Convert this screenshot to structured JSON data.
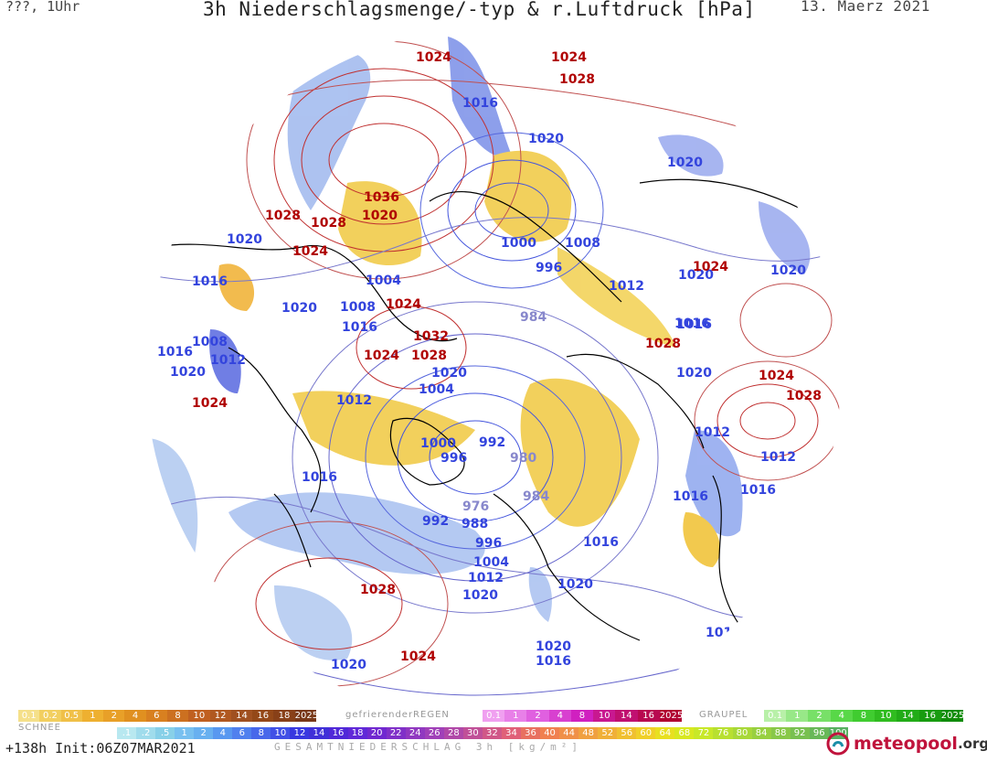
{
  "header": {
    "left": "???, 1Uhr",
    "title": "3h Niederschlagsmenge/-typ & r.Luftdruck [hPa]",
    "date": "13. Maerz 2021"
  },
  "map": {
    "pressure_labels": [
      {
        "text": "1024",
        "color": "#b00000"
      },
      {
        "text": "1024",
        "color": "#b00000"
      },
      {
        "text": "1028",
        "color": "#b00000"
      },
      {
        "text": "1016",
        "color": "#3344dd"
      },
      {
        "text": "1020",
        "color": "#3344dd"
      },
      {
        "text": "1020",
        "color": "#3344dd"
      },
      {
        "text": "1036",
        "color": "#b00000"
      },
      {
        "text": "1020",
        "color": "#b00000"
      },
      {
        "text": "1028",
        "color": "#b00000"
      },
      {
        "text": "1028",
        "color": "#b00000"
      },
      {
        "text": "1020",
        "color": "#3344dd"
      },
      {
        "text": "1024",
        "color": "#b00000"
      },
      {
        "text": "1000",
        "color": "#3344dd"
      },
      {
        "text": "1008",
        "color": "#3344dd"
      },
      {
        "text": "996",
        "color": "#3344dd"
      },
      {
        "text": "1004",
        "color": "#3344dd"
      },
      {
        "text": "1016",
        "color": "#3344dd"
      },
      {
        "text": "1024",
        "color": "#b00000"
      },
      {
        "text": "1020",
        "color": "#3344dd"
      },
      {
        "text": "1020",
        "color": "#3344dd"
      },
      {
        "text": "1012",
        "color": "#3344dd"
      },
      {
        "text": "1020",
        "color": "#3344dd"
      },
      {
        "text": "1008",
        "color": "#3344dd"
      },
      {
        "text": "1024",
        "color": "#b00000"
      },
      {
        "text": "1016",
        "color": "#3344dd"
      },
      {
        "text": "984",
        "color": "#8888cc"
      },
      {
        "text": "1016",
        "color": "#3344dd"
      },
      {
        "text": "1016",
        "color": "#3344dd"
      },
      {
        "text": "1008",
        "color": "#3344dd"
      },
      {
        "text": "1032",
        "color": "#b00000"
      },
      {
        "text": "1028",
        "color": "#b00000"
      },
      {
        "text": "1024",
        "color": "#b00000"
      },
      {
        "text": "1028",
        "color": "#b00000"
      },
      {
        "text": "1016",
        "color": "#3344dd"
      },
      {
        "text": "1012",
        "color": "#3344dd"
      },
      {
        "text": "1020",
        "color": "#3344dd"
      },
      {
        "text": "1020",
        "color": "#3344dd"
      },
      {
        "text": "1020",
        "color": "#3344dd"
      },
      {
        "text": "1024",
        "color": "#b00000"
      },
      {
        "text": "1028",
        "color": "#b00000"
      },
      {
        "text": "1004",
        "color": "#3344dd"
      },
      {
        "text": "1024",
        "color": "#b00000"
      },
      {
        "text": "1012",
        "color": "#3344dd"
      },
      {
        "text": "1012",
        "color": "#3344dd"
      },
      {
        "text": "1012",
        "color": "#3344dd"
      },
      {
        "text": "1000",
        "color": "#3344dd"
      },
      {
        "text": "992",
        "color": "#3344dd"
      },
      {
        "text": "996",
        "color": "#3344dd"
      },
      {
        "text": "980",
        "color": "#8888cc"
      },
      {
        "text": "1016",
        "color": "#3344dd"
      },
      {
        "text": "1016",
        "color": "#3344dd"
      },
      {
        "text": "1016",
        "color": "#3344dd"
      },
      {
        "text": "984",
        "color": "#8888cc"
      },
      {
        "text": "976",
        "color": "#8888cc"
      },
      {
        "text": "992",
        "color": "#3344dd"
      },
      {
        "text": "988",
        "color": "#3344dd"
      },
      {
        "text": "996",
        "color": "#3344dd"
      },
      {
        "text": "1004",
        "color": "#3344dd"
      },
      {
        "text": "1016",
        "color": "#3344dd"
      },
      {
        "text": "1012",
        "color": "#3344dd"
      },
      {
        "text": "1020",
        "color": "#3344dd"
      },
      {
        "text": "1020",
        "color": "#3344dd"
      },
      {
        "text": "1028",
        "color": "#b00000"
      },
      {
        "text": "1016",
        "color": "#3344dd"
      },
      {
        "text": "1024",
        "color": "#b00000"
      },
      {
        "text": "1020",
        "color": "#3344dd"
      },
      {
        "text": "1020",
        "color": "#3344dd"
      },
      {
        "text": "1016",
        "color": "#3344dd"
      }
    ]
  },
  "legend": {
    "snow": {
      "title": "SCHNEE",
      "cells": [
        {
          "text": "0.1",
          "color": "#f5e08a"
        },
        {
          "text": "0.2",
          "color": "#f2cf60"
        },
        {
          "text": "0.5",
          "color": "#f0c048"
        },
        {
          "text": "1",
          "color": "#eeb030"
        },
        {
          "text": "2",
          "color": "#e8a028"
        },
        {
          "text": "4",
          "color": "#e09020"
        },
        {
          "text": "6",
          "color": "#d88020"
        },
        {
          "text": "8",
          "color": "#cc7020"
        },
        {
          "text": "10",
          "color": "#c06020"
        },
        {
          "text": "12",
          "color": "#b05820"
        },
        {
          "text": "14",
          "color": "#a05020"
        },
        {
          "text": "16",
          "color": "#944818"
        },
        {
          "text": "18",
          "color": "#884018"
        },
        {
          "text": "2025+",
          "color": "#783818"
        }
      ]
    },
    "freezing_rain": {
      "title": "gefrierenderREGEN",
      "cells": [
        {
          "text": "0.1",
          "color": "#f0a0f0"
        },
        {
          "text": "1",
          "color": "#e880e8"
        },
        {
          "text": "2",
          "color": "#e060e0"
        },
        {
          "text": "4",
          "color": "#d840d0"
        },
        {
          "text": "8",
          "color": "#d020c0"
        },
        {
          "text": "10",
          "color": "#c81890"
        },
        {
          "text": "14",
          "color": "#c01070"
        },
        {
          "text": "16",
          "color": "#b80850"
        },
        {
          "text": "2025+",
          "color": "#b00030"
        }
      ]
    },
    "graupel": {
      "title": "GRAUPEL",
      "cells": [
        {
          "text": "0.1",
          "color": "#b8f0a8"
        },
        {
          "text": "1",
          "color": "#98e888"
        },
        {
          "text": "2",
          "color": "#78e068"
        },
        {
          "text": "4",
          "color": "#58d848"
        },
        {
          "text": "8",
          "color": "#40cc30"
        },
        {
          "text": "10",
          "color": "#30bc20"
        },
        {
          "text": "14",
          "color": "#22ac18"
        },
        {
          "text": "16",
          "color": "#189c10"
        },
        {
          "text": "2025+",
          "color": "#108c08"
        }
      ]
    },
    "total": {
      "cells": [
        {
          "text": ".1",
          "color": "#b8e8f0"
        },
        {
          "text": ".2",
          "color": "#a0dcec"
        },
        {
          "text": ".5",
          "color": "#88d0e8"
        },
        {
          "text": "1",
          "color": "#78c0f0"
        },
        {
          "text": "2",
          "color": "#68b0f0"
        },
        {
          "text": "4",
          "color": "#5898f0"
        },
        {
          "text": "6",
          "color": "#5080ee"
        },
        {
          "text": "8",
          "color": "#4868ea"
        },
        {
          "text": "10",
          "color": "#4050e6"
        },
        {
          "text": "12",
          "color": "#3838e0"
        },
        {
          "text": "14",
          "color": "#4030d8"
        },
        {
          "text": "16",
          "color": "#5028d8"
        },
        {
          "text": "18",
          "color": "#6028d8"
        },
        {
          "text": "20",
          "color": "#7028d0"
        },
        {
          "text": "22",
          "color": "#8030c8"
        },
        {
          "text": "24",
          "color": "#9038c0"
        },
        {
          "text": "26",
          "color": "#a040b8"
        },
        {
          "text": "28",
          "color": "#b048a8"
        },
        {
          "text": "30",
          "color": "#c05098"
        },
        {
          "text": "32",
          "color": "#d05888"
        },
        {
          "text": "34",
          "color": "#e06078"
        },
        {
          "text": "36",
          "color": "#e87060"
        },
        {
          "text": "40",
          "color": "#f08050"
        },
        {
          "text": "44",
          "color": "#f09048"
        },
        {
          "text": "48",
          "color": "#f0a040"
        },
        {
          "text": "52",
          "color": "#f0b038"
        },
        {
          "text": "56",
          "color": "#f0c030"
        },
        {
          "text": "60",
          "color": "#f0d028"
        },
        {
          "text": "64",
          "color": "#e8e020"
        },
        {
          "text": "68",
          "color": "#d8e820"
        },
        {
          "text": "72",
          "color": "#c8e828"
        },
        {
          "text": "76",
          "color": "#b8e030"
        },
        {
          "text": "80",
          "color": "#a8d838"
        },
        {
          "text": "84",
          "color": "#98d040"
        },
        {
          "text": "88",
          "color": "#88c848"
        },
        {
          "text": "92",
          "color": "#78c050"
        },
        {
          "text": "96",
          "color": "#68b858"
        },
        {
          "text": "100",
          "color": "#58b060"
        }
      ]
    },
    "total_title": "GESAMTNIEDERSCHLAG 3h [kg/m²]"
  },
  "footer": {
    "run": "+138h Init:06Z07MAR2021",
    "logo_name": "meteopool",
    "logo_tld": ".org"
  }
}
